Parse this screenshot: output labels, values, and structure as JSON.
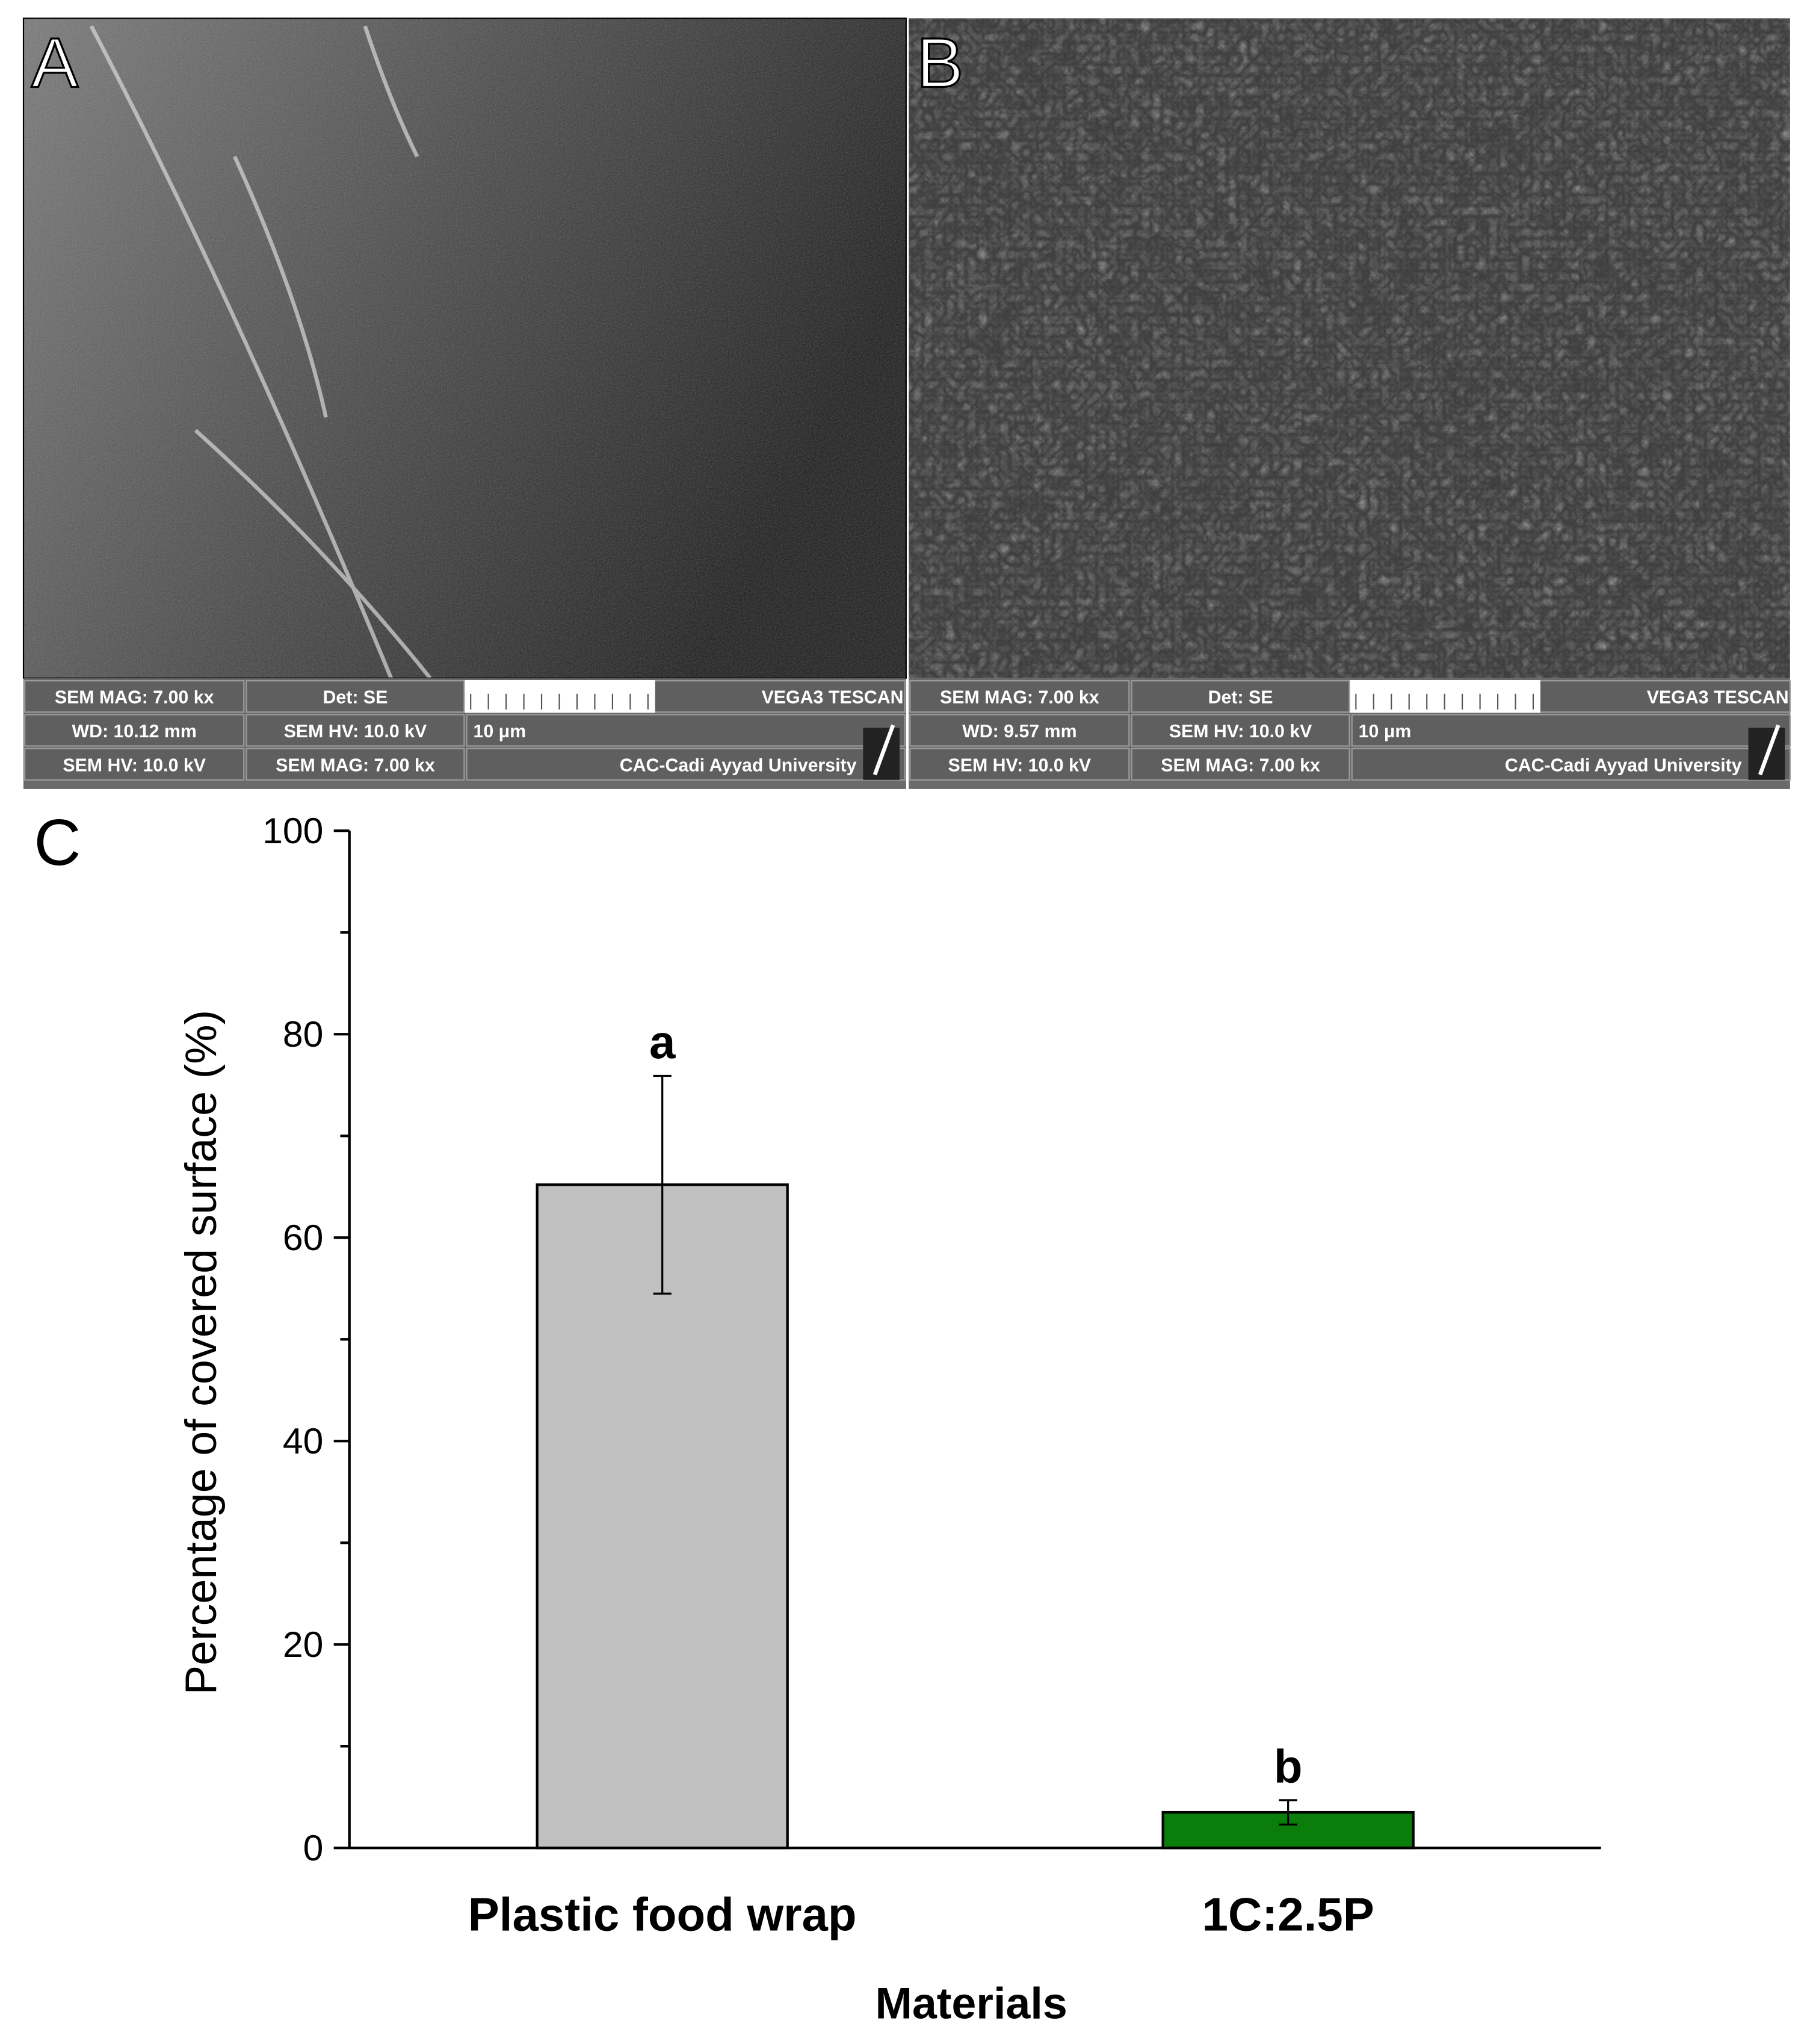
{
  "sem_panels": [
    {
      "label": "A",
      "info_rows": [
        [
          "SEM MAG: 7.00 kx",
          "Det: SE",
          "VEGA3 TESCAN"
        ],
        [
          "WD: 10.12 mm",
          "SEM HV: 10.0 kV",
          "10 μm"
        ],
        [
          "SEM HV: 10.0 kV",
          "SEM MAG: 7.00 kx",
          "CAC-Cadi Ayyad University"
        ]
      ]
    },
    {
      "label": "B",
      "info_rows": [
        [
          "SEM MAG: 7.00 kx",
          "Det: SE",
          "VEGA3 TESCAN"
        ],
        [
          "WD: 9.57 mm",
          "SEM HV: 10.0 kV",
          "10 μm"
        ],
        [
          "SEM HV: 10.0 kV",
          "SEM MAG: 7.00 kx",
          "CAC-Cadi Ayyad University"
        ]
      ]
    }
  ],
  "chart_data": {
    "type": "bar",
    "panel_label": "C",
    "x_label": "Materials",
    "y_label": "Percentage of covered surface (%)",
    "categories": [
      "Plastic food wrap",
      "1C:2.5P"
    ],
    "values": [
      65.2,
      3.5
    ],
    "errors": [
      10.7,
      1.2
    ],
    "colors": [
      "#c0c0c0",
      "#0a7d0a"
    ],
    "annotations": [
      "a",
      "b"
    ],
    "ylim": [
      0,
      100
    ],
    "yticks": [
      0,
      20,
      40,
      60,
      80,
      100
    ],
    "yminorticks": [
      10,
      30,
      50,
      70,
      90
    ]
  }
}
